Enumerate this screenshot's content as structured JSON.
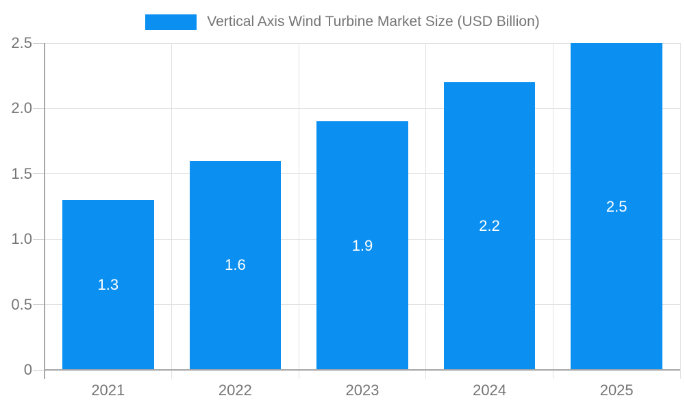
{
  "legend": {
    "label": "Vertical Axis Wind Turbine Market Size (USD Billion)"
  },
  "colors": {
    "bar": "#0b90f2",
    "grid": "#e2e2e2",
    "axis": "#a6a6a6",
    "tick": "#cfcfcf",
    "text": "#757575",
    "bar_label": "#ffffff",
    "background": "#ffffff"
  },
  "chart_data": {
    "type": "bar",
    "title": "Vertical Axis Wind Turbine Market Size (USD Billion)",
    "categories": [
      "2021",
      "2022",
      "2023",
      "2024",
      "2025"
    ],
    "values": [
      1.3,
      1.6,
      1.9,
      2.2,
      2.5
    ],
    "bar_labels": [
      "1.3",
      "1.6",
      "1.9",
      "2.2",
      "2.5"
    ],
    "xlabel": "",
    "ylabel": "",
    "ylim": [
      0,
      2.5
    ],
    "yticks": [
      0,
      0.5,
      1.0,
      1.5,
      2.0,
      2.5
    ],
    "ytick_labels": [
      "0",
      "0.5",
      "1.0",
      "1.5",
      "2.0",
      "2.5"
    ],
    "legend_position": "top",
    "grid": true,
    "bar_width_fraction": 0.72
  }
}
